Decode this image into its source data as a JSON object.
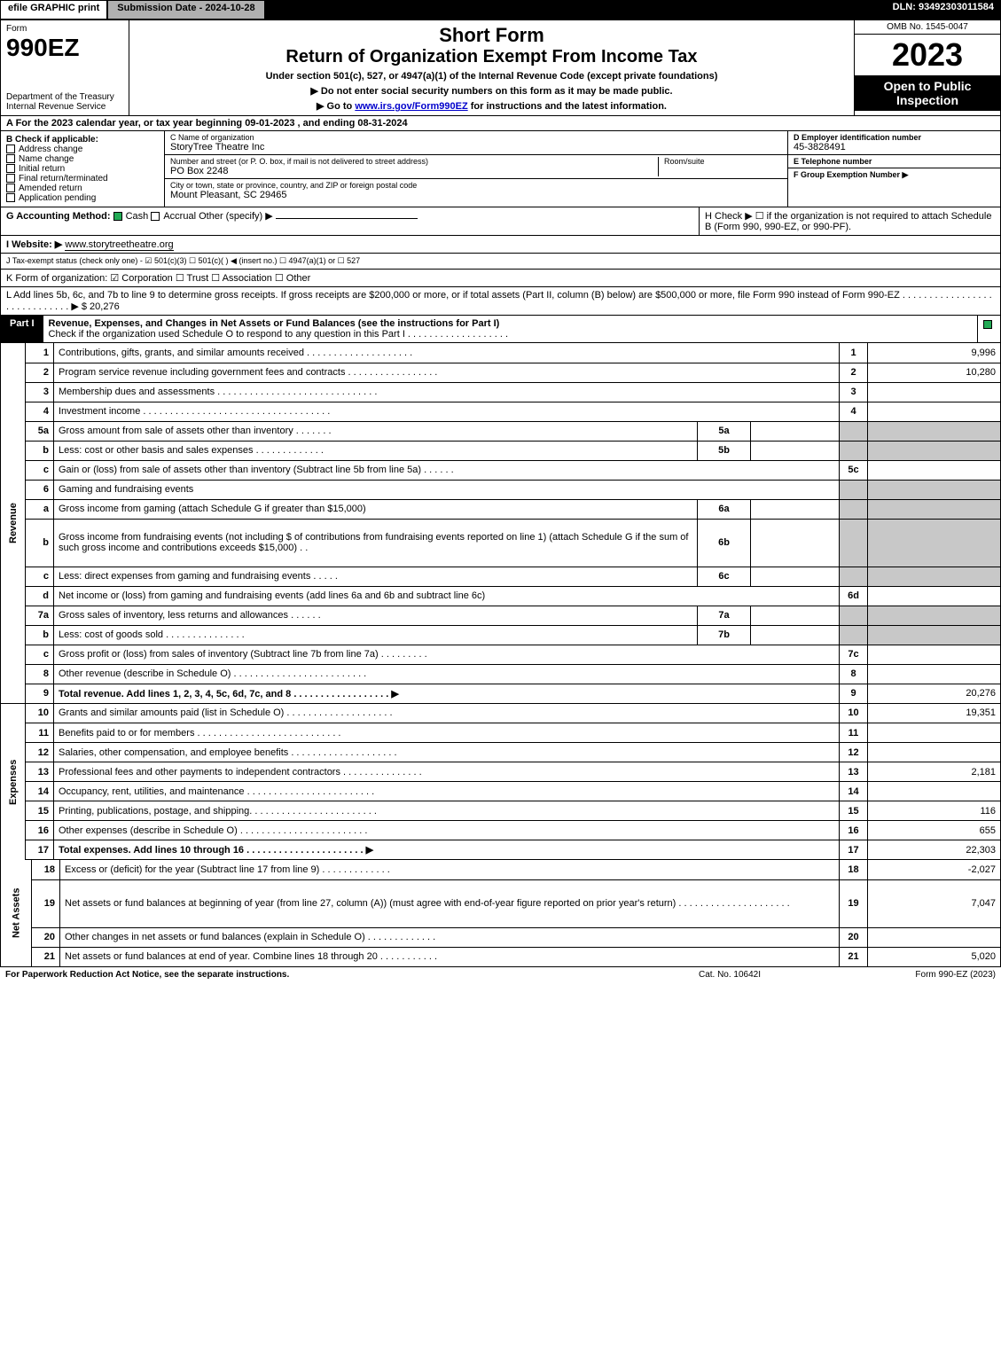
{
  "topbar": {
    "efile": "efile GRAPHIC print",
    "subdate": "Submission Date - 2024-10-28",
    "dln": "DLN: 93492303011584"
  },
  "header": {
    "form_word": "Form",
    "form_num": "990EZ",
    "dept": "Department of the Treasury\nInternal Revenue Service",
    "title1": "Short Form",
    "title2": "Return of Organization Exempt From Income Tax",
    "subtitle": "Under section 501(c), 527, or 4947(a)(1) of the Internal Revenue Code (except private foundations)",
    "bullet1": "▶ Do not enter social security numbers on this form as it may be made public.",
    "bullet2_pre": "▶ Go to ",
    "bullet2_link": "www.irs.gov/Form990EZ",
    "bullet2_post": " for instructions and the latest information.",
    "omb": "OMB No. 1545-0047",
    "year": "2023",
    "open": "Open to Public Inspection"
  },
  "rowA": "A  For the 2023 calendar year, or tax year beginning 09-01-2023 , and ending 08-31-2024",
  "boxB": {
    "label": "B  Check if applicable:",
    "opts": [
      "Address change",
      "Name change",
      "Initial return",
      "Final return/terminated",
      "Amended return",
      "Application pending"
    ]
  },
  "boxC": {
    "name_label": "C Name of organization",
    "name": "StoryTree Theatre Inc",
    "street_label": "Number and street (or P. O. box, if mail is not delivered to street address)",
    "street": "PO Box 2248",
    "room_label": "Room/suite",
    "city_label": "City or town, state or province, country, and ZIP or foreign postal code",
    "city": "Mount Pleasant, SC  29465"
  },
  "boxD": {
    "ein_label": "D Employer identification number",
    "ein": "45-3828491",
    "tel_label": "E Telephone number",
    "grp_label": "F Group Exemption Number   ▶"
  },
  "rowG": {
    "label": "G Accounting Method:",
    "cash": "Cash",
    "accrual": "Accrual",
    "other": "Other (specify) ▶"
  },
  "rowH": "H   Check ▶  ☐  if the organization is not required to attach Schedule B (Form 990, 990-EZ, or 990-PF).",
  "rowI": {
    "label": "I Website: ▶",
    "val": "www.storytreetheatre.org"
  },
  "rowJ": "J Tax-exempt status (check only one) - ☑ 501(c)(3) ☐ 501(c)(  ) ◀ (insert no.) ☐ 4947(a)(1) or ☐ 527",
  "rowK": "K Form of organization:   ☑ Corporation  ☐ Trust  ☐ Association  ☐ Other",
  "rowL": {
    "text": "L Add lines 5b, 6c, and 7b to line 9 to determine gross receipts. If gross receipts are $200,000 or more, or if total assets (Part II, column (B) below) are $500,000 or more, file Form 990 instead of Form 990-EZ  . . . . . . . . . . . . . . . . . . . . . . . . . . . . .  ▶ $",
    "val": "20,276"
  },
  "part1": {
    "label": "Part I",
    "title": "Revenue, Expenses, and Changes in Net Assets or Fund Balances (see the instructions for Part I)",
    "sub": "Check if the organization used Schedule O to respond to any question in this Part I . . . . . . . . . . . . . . . . . . ."
  },
  "sections": {
    "revenue": "Revenue",
    "expenses": "Expenses",
    "netassets": "Net Assets"
  },
  "lines": [
    {
      "n": "1",
      "d": "Contributions, gifts, grants, and similar amounts received . . . . . . . . . . . . . . . . . . . .",
      "lno": "1",
      "v": "9,996"
    },
    {
      "n": "2",
      "d": "Program service revenue including government fees and contracts . . . . . . . . . . . . . . . . .",
      "lno": "2",
      "v": "10,280"
    },
    {
      "n": "3",
      "d": "Membership dues and assessments . . . . . . . . . . . . . . . . . . . . . . . . . . . . . .",
      "lno": "3",
      "v": ""
    },
    {
      "n": "4",
      "d": "Investment income . . . . . . . . . . . . . . . . . . . . . . . . . . . . . . . . . . .",
      "lno": "4",
      "v": ""
    },
    {
      "n": "5a",
      "d": "Gross amount from sale of assets other than inventory . . . . . . .",
      "ib": "5a",
      "iv": "",
      "shade": true
    },
    {
      "n": "b",
      "d": "Less: cost or other basis and sales expenses . . . . . . . . . . . . .",
      "ib": "5b",
      "iv": "",
      "shade": true
    },
    {
      "n": "c",
      "d": "Gain or (loss) from sale of assets other than inventory (Subtract line 5b from line 5a) . . . . . .",
      "lno": "5c",
      "v": ""
    },
    {
      "n": "6",
      "d": "Gaming and fundraising events",
      "shade": true
    },
    {
      "n": "a",
      "d": "Gross income from gaming (attach Schedule G if greater than $15,000)",
      "ib": "6a",
      "iv": "",
      "shade": true
    },
    {
      "n": "b",
      "d": "Gross income from fundraising events (not including $                    of contributions from fundraising events reported on line 1) (attach Schedule G if the sum of such gross income and contributions exceeds $15,000)  .  .",
      "ib": "6b",
      "iv": "",
      "shade": true,
      "tall": true
    },
    {
      "n": "c",
      "d": "Less: direct expenses from gaming and fundraising events  . . . . .",
      "ib": "6c",
      "iv": "",
      "shade": true
    },
    {
      "n": "d",
      "d": "Net income or (loss) from gaming and fundraising events (add lines 6a and 6b and subtract line 6c)",
      "lno": "6d",
      "v": ""
    },
    {
      "n": "7a",
      "d": "Gross sales of inventory, less returns and allowances . . . . . .",
      "ib": "7a",
      "iv": "",
      "shade": true
    },
    {
      "n": "b",
      "d": "Less: cost of goods sold       . . . . . . . . . . . . . . .",
      "ib": "7b",
      "iv": "",
      "shade": true
    },
    {
      "n": "c",
      "d": "Gross profit or (loss) from sales of inventory (Subtract line 7b from line 7a) . . . . . . . . .",
      "lno": "7c",
      "v": ""
    },
    {
      "n": "8",
      "d": "Other revenue (describe in Schedule O) . . . . . . . . . . . . . . . . . . . . . . . . .",
      "lno": "8",
      "v": ""
    },
    {
      "n": "9",
      "d": "Total revenue. Add lines 1, 2, 3, 4, 5c, 6d, 7c, and 8  . . . . . . . . . . . . . . . . . .     ▶",
      "lno": "9",
      "v": "20,276",
      "bold": true
    }
  ],
  "exp_lines": [
    {
      "n": "10",
      "d": "Grants and similar amounts paid (list in Schedule O) . . . . . . . . . . . . . . . . . . . .",
      "lno": "10",
      "v": "19,351"
    },
    {
      "n": "11",
      "d": "Benefits paid to or for members     . . . . . . . . . . . . . . . . . . . . . . . . . . .",
      "lno": "11",
      "v": ""
    },
    {
      "n": "12",
      "d": "Salaries, other compensation, and employee benefits . . . . . . . . . . . . . . . . . . . .",
      "lno": "12",
      "v": ""
    },
    {
      "n": "13",
      "d": "Professional fees and other payments to independent contractors . . . . . . . . . . . . . . .",
      "lno": "13",
      "v": "2,181"
    },
    {
      "n": "14",
      "d": "Occupancy, rent, utilities, and maintenance . . . . . . . . . . . . . . . . . . . . . . . .",
      "lno": "14",
      "v": ""
    },
    {
      "n": "15",
      "d": "Printing, publications, postage, and shipping. . . . . . . . . . . . . . . . . . . . . . . .",
      "lno": "15",
      "v": "116"
    },
    {
      "n": "16",
      "d": "Other expenses (describe in Schedule O)    . . . . . . . . . . . . . . . . . . . . . . . .",
      "lno": "16",
      "v": "655"
    },
    {
      "n": "17",
      "d": "Total expenses. Add lines 10 through 16    . . . . . . . . . . . . . . . . . . . . . .    ▶",
      "lno": "17",
      "v": "22,303",
      "bold": true
    }
  ],
  "na_lines": [
    {
      "n": "18",
      "d": "Excess or (deficit) for the year (Subtract line 17 from line 9)       . . . . . . . . . . . . .",
      "lno": "18",
      "v": "-2,027"
    },
    {
      "n": "19",
      "d": "Net assets or fund balances at beginning of year (from line 27, column (A)) (must agree with end-of-year figure reported on prior year's return) . . . . . . . . . . . . . . . . . . . . .",
      "lno": "19",
      "v": "7,047",
      "tall": true,
      "shadetop": true
    },
    {
      "n": "20",
      "d": "Other changes in net assets or fund balances (explain in Schedule O) . . . . . . . . . . . . .",
      "lno": "20",
      "v": ""
    },
    {
      "n": "21",
      "d": "Net assets or fund balances at end of year. Combine lines 18 through 20 . . . . . . . . . . .",
      "lno": "21",
      "v": "5,020"
    }
  ],
  "footer": {
    "l": "For Paperwork Reduction Act Notice, see the separate instructions.",
    "c": "Cat. No. 10642I",
    "r": "Form 990-EZ (2023)"
  }
}
